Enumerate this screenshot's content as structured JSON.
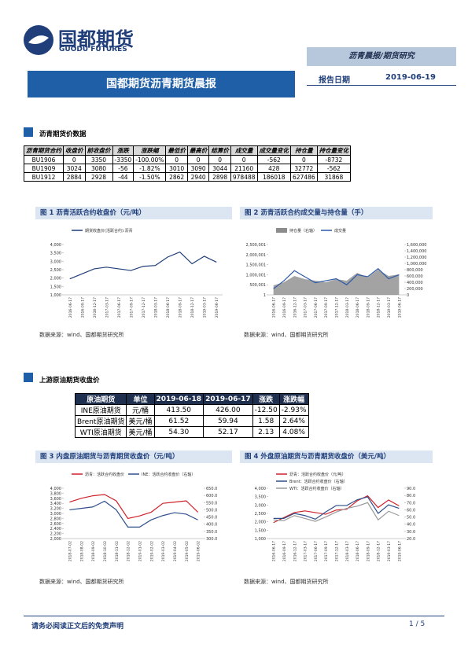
{
  "header": {
    "logo_cn": "国都期货",
    "logo_en": "GUODU FUTURES",
    "category": "沥青晨报/期货研究",
    "title": "国都期货沥青期货晨报",
    "date_label": "报告日期",
    "date": "2019-06-19"
  },
  "sections": [
    {
      "title": "沥青期货价数据"
    },
    {
      "title": "上游原油期货收盘价"
    }
  ],
  "table1": {
    "columns": [
      "沥青期货合约",
      "收盘价",
      "前收盘价",
      "涨跌",
      "涨跌幅",
      "最低价",
      "最高价",
      "结算价",
      "成交量",
      "成交量变化",
      "持仓量",
      "持仓量变化"
    ],
    "rows": [
      [
        "BU1906",
        "0",
        "3350",
        "-3350",
        "-100.00%",
        "0",
        "0",
        "0",
        "0",
        "-562",
        "0",
        "-8732"
      ],
      [
        "BU1909",
        "3024",
        "3080",
        "-56",
        "-1.82%",
        "3010",
        "3090",
        "3044",
        "21160",
        "428",
        "32772",
        "-562"
      ],
      [
        "BU1912",
        "2884",
        "2928",
        "-44",
        "-1.50%",
        "2862",
        "2940",
        "2898",
        "978488",
        "186018",
        "627486",
        "31868"
      ]
    ]
  },
  "table2": {
    "columns": [
      "原油期货",
      "单位",
      "2019-06-18",
      "2019-06-17",
      "涨跌",
      "涨跌幅"
    ],
    "rows": [
      [
        "INE原油期货",
        "元/桶",
        "413.50",
        "426.00",
        "-12.50",
        "-2.93%"
      ],
      [
        "Brent原油期货",
        "美元/桶",
        "61.52",
        "59.94",
        "1.58",
        "2.64%"
      ],
      [
        "WTI原油期货",
        "美元/桶",
        "54.30",
        "52.17",
        "2.13",
        "4.08%"
      ]
    ]
  },
  "figures": [
    {
      "caption": "图 1 沥青活跃合约收盘价（元/吨）",
      "source": "数据来源：wind、国都期货研究所"
    },
    {
      "caption": "图 2 沥青活跃合约成交量与持仓量（手）",
      "source": "数据来源：wind、国都期货研究所"
    },
    {
      "caption": "图 3 内盘原油期货与沥青期货收盘价（元/吨）",
      "source": "数据来源：wind、国都期货研究所"
    },
    {
      "caption": "图 4 外盘原油期货与沥青期货收盘价（美元/吨）",
      "source": "数据来源：wind、国都期货研究所"
    }
  ],
  "chart_data": [
    {
      "type": "line",
      "categories": [
        "2016-06-17",
        "2016-09-17",
        "2016-12-17",
        "2017-03-17",
        "2017-06-17",
        "2017-09-17",
        "2017-12-17",
        "2018-03-17",
        "2018-06-17",
        "2018-09-17",
        "2018-12-17",
        "2019-03-17",
        "2019-06-17"
      ],
      "series": [
        {
          "name": "期货收盘价(活跃合约):沥青",
          "color": "#1f3e7a",
          "values": [
            1950,
            2250,
            2550,
            2650,
            2550,
            2450,
            2700,
            2750,
            3250,
            3550,
            2850,
            3300,
            2950
          ]
        }
      ],
      "ylim": [
        1000,
        4000
      ],
      "yticks": [
        {
          "value": 1000,
          "label": "1,000"
        },
        {
          "value": 1500,
          "label": "1,500"
        },
        {
          "value": 2000,
          "label": "2,000"
        },
        {
          "value": 2500,
          "label": "2,500"
        },
        {
          "value": 3000,
          "label": "3,000"
        },
        {
          "value": 3500,
          "label": "3,500"
        },
        {
          "value": 4000,
          "label": "4,000"
        }
      ]
    },
    {
      "type": "line",
      "categories": [
        "2016-06-17",
        "2016-09-17",
        "2016-12-17",
        "2017-03-17",
        "2017-06-17",
        "2017-09-17",
        "2017-12-17",
        "2018-03-17",
        "2018-06-17",
        "2018-09-17",
        "2018-12-17",
        "2019-03-17",
        "2019-06-17"
      ],
      "series": [
        {
          "name": "持仓量（右轴）",
          "color": "#8c8c8c",
          "style": "area",
          "axis": "y2",
          "values": [
            300000,
            400000,
            600000,
            500000,
            450000,
            400000,
            500000,
            450000,
            700000,
            550000,
            800000,
            600000,
            650000
          ]
        },
        {
          "name": "成交量",
          "color": "#2e5aa8",
          "values": [
            300000,
            700000,
            1200000,
            900000,
            600000,
            700000,
            800000,
            500000,
            1000000,
            900000,
            1300000,
            800000,
            1000000
          ]
        }
      ],
      "ylim": [
        1,
        2500001
      ],
      "yticks": [
        1,
        {
          "value": 500001,
          "label": "500,001"
        },
        {
          "value": 1000001,
          "label": "1,000,001"
        },
        {
          "value": 1500001,
          "label": "1,500,001"
        },
        {
          "value": 2000001,
          "label": "2,000,001"
        },
        {
          "value": 2500001,
          "label": "2,500,001"
        }
      ],
      "y2lim": [
        0,
        1600000
      ],
      "y2ticks": [
        0,
        {
          "value": 200000,
          "label": "200,000"
        },
        {
          "value": 400000,
          "label": "400,000"
        },
        {
          "value": 600000,
          "label": "600,000"
        },
        {
          "value": 800000,
          "label": "800,000"
        },
        {
          "value": 1000000,
          "label": "1,000,000"
        },
        {
          "value": 1200000,
          "label": "1,200,000"
        },
        {
          "value": 1400000,
          "label": "1,400,000"
        },
        {
          "value": 1600000,
          "label": "1,600,000"
        }
      ]
    },
    {
      "type": "line",
      "categories": [
        "2018-07-02",
        "2018-08-02",
        "2018-09-02",
        "2018-10-02",
        "2018-11-02",
        "2018-12-02",
        "2019-01-02",
        "2019-02-02",
        "2019-03-02",
        "2019-04-02",
        "2019-05-02",
        "2019-06-02"
      ],
      "series": [
        {
          "name": "沥青：活跃合约收盘价",
          "color": "#d0212a",
          "values": [
            3450,
            3600,
            3700,
            3750,
            3500,
            2800,
            2900,
            3050,
            3400,
            3450,
            3500,
            3050
          ]
        },
        {
          "name": "INE：活跃合约收盘价（右轴）",
          "color": "#2e4f8c",
          "axis": "y2",
          "values": [
            500,
            510,
            520,
            560,
            500,
            380,
            380,
            430,
            460,
            480,
            470,
            430
          ]
        }
      ],
      "ylim": [
        2000,
        4000
      ],
      "yticks": [
        {
          "value": 2000,
          "label": "2,000"
        },
        {
          "value": 2200,
          "label": "2,200"
        },
        {
          "value": 2400,
          "label": "2,400"
        },
        {
          "value": 2600,
          "label": "2,600"
        },
        {
          "value": 2800,
          "label": "2,800"
        },
        {
          "value": 3000,
          "label": "3,000"
        },
        {
          "value": 3200,
          "label": "3,200"
        },
        {
          "value": 3400,
          "label": "3,400"
        },
        {
          "value": 3600,
          "label": "3,600"
        },
        {
          "value": 3800,
          "label": "3,800"
        },
        {
          "value": 4000,
          "label": "4,000"
        }
      ],
      "y2lim": [
        300,
        650
      ],
      "y2ticks": [
        {
          "value": 300,
          "label": "300.0"
        },
        {
          "value": 350,
          "label": "350.0"
        },
        {
          "value": 400,
          "label": "400.0"
        },
        {
          "value": 450,
          "label": "450.0"
        },
        {
          "value": 500,
          "label": "500.0"
        },
        {
          "value": 550,
          "label": "550.0"
        },
        {
          "value": 600,
          "label": "600.0"
        },
        {
          "value": 650,
          "label": "650.0"
        }
      ]
    },
    {
      "type": "line",
      "categories": [
        "2016-06-17",
        "2016-09-17",
        "2016-12-17",
        "2017-03-17",
        "2017-06-17",
        "2017-09-17",
        "2017-12-17",
        "2018-03-17",
        "2018-06-17",
        "2018-09-17",
        "2018-12-17",
        "2019-03-17",
        "2019-06-17"
      ],
      "series": [
        {
          "name": "沥青：活跃合约收盘价（元/吨）",
          "color": "#d0212a",
          "values": [
            1950,
            2250,
            2550,
            2650,
            2550,
            2450,
            2700,
            2750,
            3250,
            3550,
            2850,
            3300,
            2950
          ]
        },
        {
          "name": "Brent：活跃合约收盘价（右轴）",
          "color": "#2e4f8c",
          "axis": "y2",
          "values": [
            48,
            48,
            55,
            52,
            47,
            57,
            66,
            66,
            74,
            78,
            55,
            67,
            62
          ]
        },
        {
          "name": "WTI：活跃合约收盘价（右轴）",
          "color": "#9a9a9a",
          "axis": "y2",
          "values": [
            46,
            45,
            52,
            48,
            44,
            50,
            57,
            62,
            65,
            70,
            46,
            58,
            52
          ]
        }
      ],
      "ylim": [
        1000,
        4000
      ],
      "yticks": [
        {
          "value": 1000,
          "label": "1,000"
        },
        {
          "value": 1500,
          "label": "1,500"
        },
        {
          "value": 2000,
          "label": "2,000"
        },
        {
          "value": 2500,
          "label": "2,500"
        },
        {
          "value": 3000,
          "label": "3,000"
        },
        {
          "value": 3500,
          "label": "3,500"
        },
        {
          "value": 4000,
          "label": "4,000"
        }
      ],
      "y2lim": [
        20,
        90
      ],
      "y2ticks": [
        {
          "value": 20,
          "label": "20.0"
        },
        {
          "value": 30,
          "label": "30.0"
        },
        {
          "value": 40,
          "label": "40.0"
        },
        {
          "value": 50,
          "label": "50.0"
        },
        {
          "value": 60,
          "label": "60.0"
        },
        {
          "value": 70,
          "label": "70.0"
        },
        {
          "value": 80,
          "label": "80.0"
        },
        {
          "value": 90,
          "label": "90.0"
        }
      ]
    }
  ],
  "footer": {
    "disclaimer": "请务必阅读正文后的免责声明",
    "page": "1 / 5"
  }
}
